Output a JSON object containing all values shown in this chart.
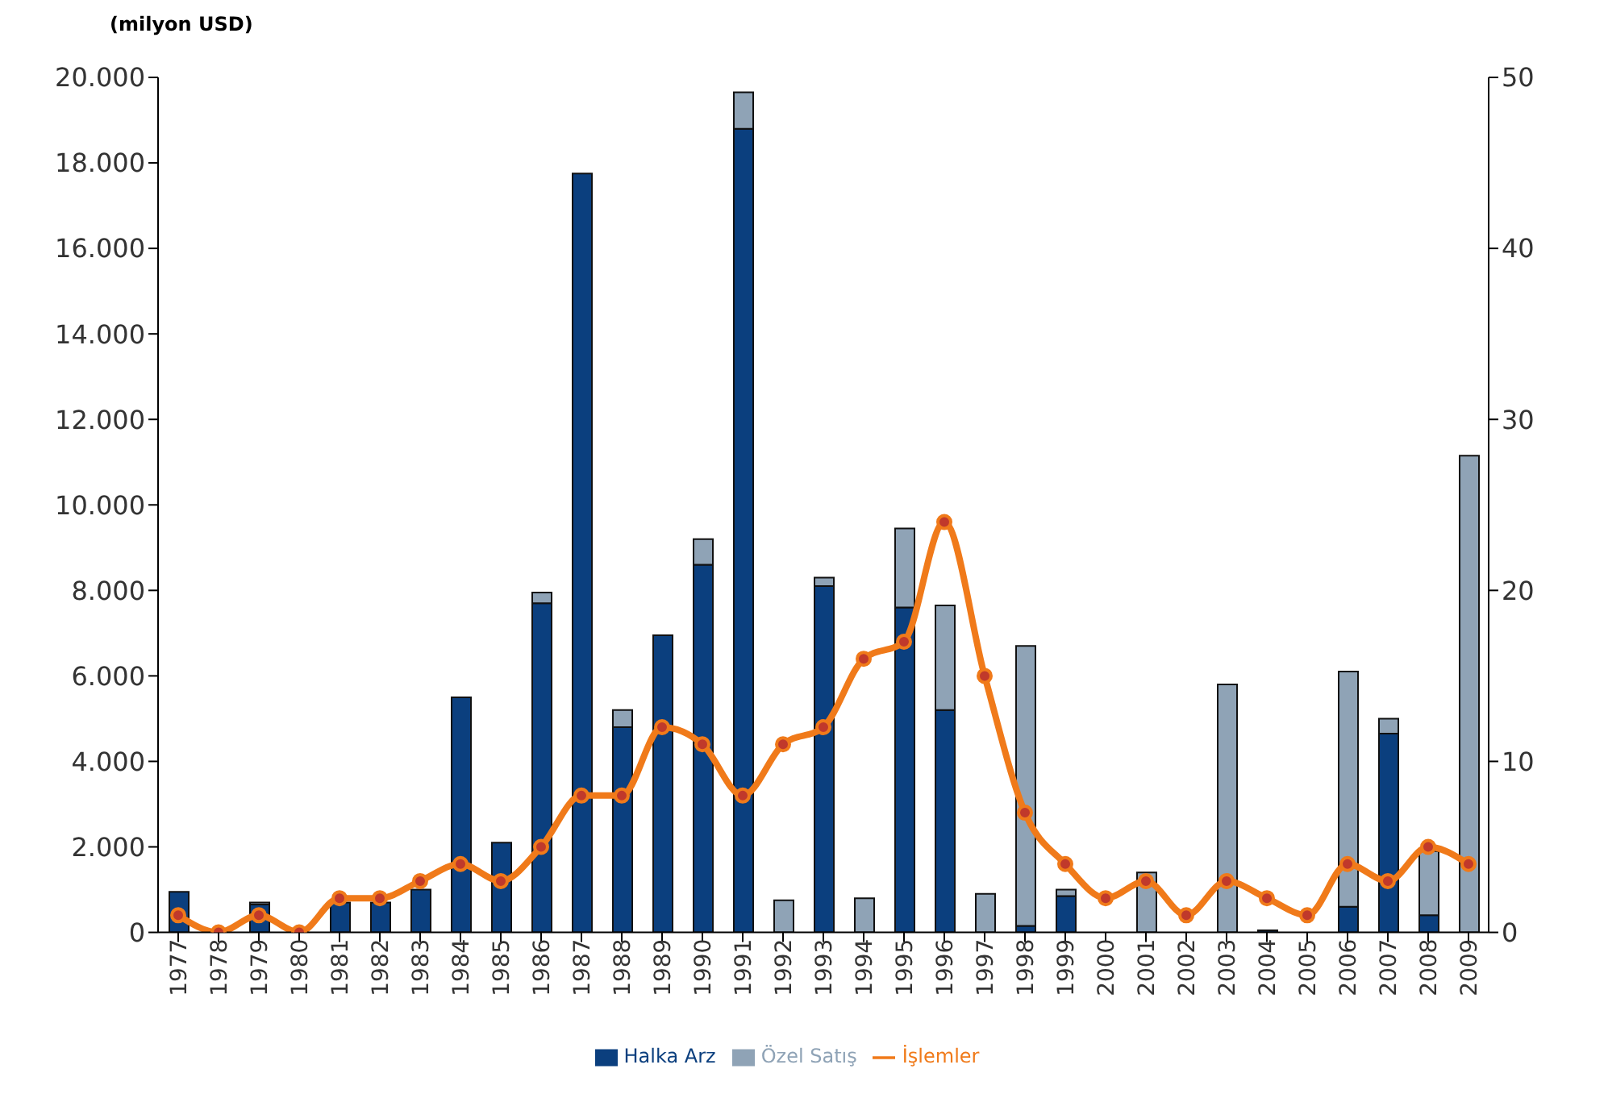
{
  "chart_data": {
    "type": "bar",
    "ylabel": "(milyon USD)",
    "stacked": true,
    "legend": "bottom",
    "marker": "circle",
    "categories": [
      "1977",
      "1978",
      "1979",
      "1980",
      "1981",
      "1982",
      "1983",
      "1984",
      "1985",
      "1986",
      "1987",
      "1988",
      "1989",
      "1990",
      "1991",
      "1992",
      "1993",
      "1994",
      "1995",
      "1996",
      "1997",
      "1998",
      "1999",
      "2000",
      "2001",
      "2002",
      "2003",
      "2004",
      "2005",
      "2006",
      "2007",
      "2008",
      "2009"
    ],
    "series": [
      {
        "name": "Halka Arz",
        "color": "#0b3f7e",
        "values": [
          950,
          0,
          650,
          0,
          700,
          700,
          1000,
          5500,
          2100,
          7700,
          17750,
          4800,
          6950,
          8600,
          18800,
          0,
          8100,
          0,
          7600,
          5200,
          0,
          150,
          850,
          0,
          0,
          0,
          0,
          50,
          0,
          600,
          4650,
          400,
          0
        ]
      },
      {
        "name": "Özel Satış",
        "color": "#8fa3b6",
        "values": [
          0,
          0,
          50,
          0,
          0,
          0,
          0,
          0,
          0,
          250,
          0,
          400,
          0,
          600,
          850,
          750,
          200,
          800,
          1850,
          2450,
          900,
          6550,
          150,
          0,
          1400,
          0,
          5800,
          0,
          0,
          5500,
          350,
          1500,
          11150
        ]
      },
      {
        "name": "İşlemler",
        "type": "line",
        "axis": "y2",
        "color": "#f07a1a",
        "values": [
          1,
          0,
          1,
          0,
          2,
          2,
          3,
          4,
          3,
          5,
          8,
          8,
          12,
          11,
          8,
          11,
          12,
          16,
          17,
          24,
          15,
          7,
          4,
          2,
          3,
          1,
          3,
          2,
          1,
          4,
          3,
          5,
          4
        ]
      }
    ],
    "ylim": [
      0,
      20000
    ],
    "yticks": [
      {
        "value": 0,
        "label": "0"
      },
      {
        "value": 2000,
        "label": "2.000"
      },
      {
        "value": 4000,
        "label": "4.000"
      },
      {
        "value": 6000,
        "label": "6.000"
      },
      {
        "value": 8000,
        "label": "8.000"
      },
      {
        "value": 10000,
        "label": "10.000"
      },
      {
        "value": 12000,
        "label": "12.000"
      },
      {
        "value": 14000,
        "label": "14.000"
      },
      {
        "value": 16000,
        "label": "16.000"
      },
      {
        "value": 18000,
        "label": "18.000"
      },
      {
        "value": 20000,
        "label": "20.000"
      }
    ],
    "y2lim": [
      0,
      50
    ],
    "y2ticks": [
      0,
      10,
      20,
      30,
      40,
      50
    ]
  }
}
